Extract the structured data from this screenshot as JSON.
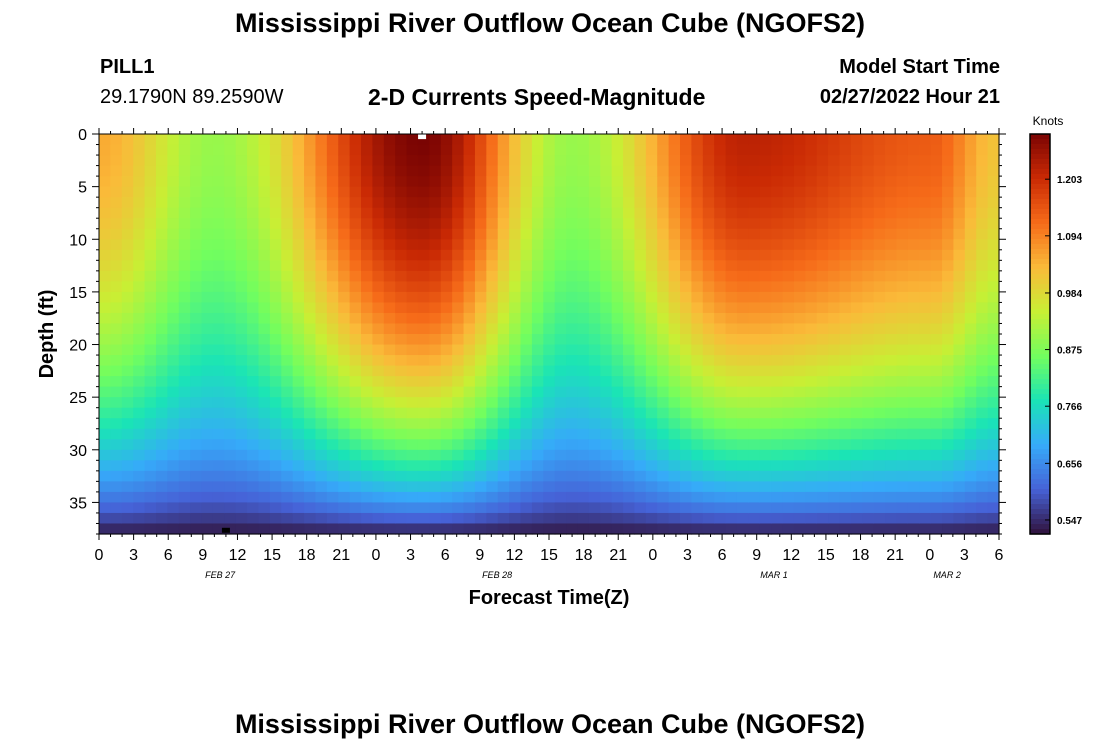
{
  "header": {
    "title": "Mississippi River Outflow Ocean Cube (NGOFS2)",
    "station": "PILL1",
    "coords": "29.1790N  89.2590W",
    "subtitle": "2-D Currents Speed-Magnitude",
    "model_label": "Model Start Time",
    "model_time": "02/27/2022 Hour 21"
  },
  "footer": {
    "title": "Mississippi River Outflow Ocean Cube (NGOFS2)"
  },
  "chart_data": {
    "type": "heatmap",
    "title": "2-D Currents Speed-Magnitude",
    "xlabel": "Forecast Time(Z)",
    "ylabel": "Depth (ft)",
    "colorbar_label": "Knots",
    "x_hours_from_start": [
      0,
      78
    ],
    "x_tick_labels": [
      "0",
      "3",
      "6",
      "9",
      "12",
      "15",
      "18",
      "21",
      "0",
      "3",
      "6",
      "9",
      "12",
      "15",
      "18",
      "21",
      "0",
      "3",
      "6",
      "9",
      "12",
      "15",
      "18",
      "21",
      "0",
      "3",
      "6"
    ],
    "date_labels": [
      {
        "label": "FEB 27",
        "at_tick": 10.5
      },
      {
        "label": "FEB 28",
        "at_tick": 34.5
      },
      {
        "label": "MAR 1",
        "at_tick": 58.5
      },
      {
        "label": "MAR 2",
        "at_tick": 73.5
      }
    ],
    "ylim": [
      0,
      38
    ],
    "y_ticks": [
      0,
      5,
      10,
      15,
      20,
      25,
      30,
      35
    ],
    "y_inverted": true,
    "colorbar_ticks": [
      0.547,
      0.656,
      0.766,
      0.875,
      0.984,
      1.094,
      1.203
    ],
    "value_range": [
      0.52,
      1.29
    ],
    "colormap": [
      "#30123b",
      "#4662d7",
      "#36aaf9",
      "#1ae4b6",
      "#72fe5e",
      "#c8ef34",
      "#faba39",
      "#f66b19",
      "#ca2a04",
      "#7a0403"
    ],
    "surface_speed_profile": [
      {
        "hour": 0,
        "speed": 1.05
      },
      {
        "hour": 10,
        "speed": 0.9
      },
      {
        "hour": 28,
        "speed": 1.29
      },
      {
        "hour": 41,
        "speed": 0.9
      },
      {
        "hour": 56,
        "speed": 1.22
      },
      {
        "hour": 72,
        "speed": 1.14
      },
      {
        "hour": 78,
        "speed": 1.02
      }
    ],
    "markers": [
      {
        "name": "max",
        "hour": 28,
        "depth": 0.2,
        "color": "#ffffff"
      },
      {
        "name": "min",
        "hour": 11,
        "depth": 37.6,
        "color": "#000000"
      }
    ]
  }
}
